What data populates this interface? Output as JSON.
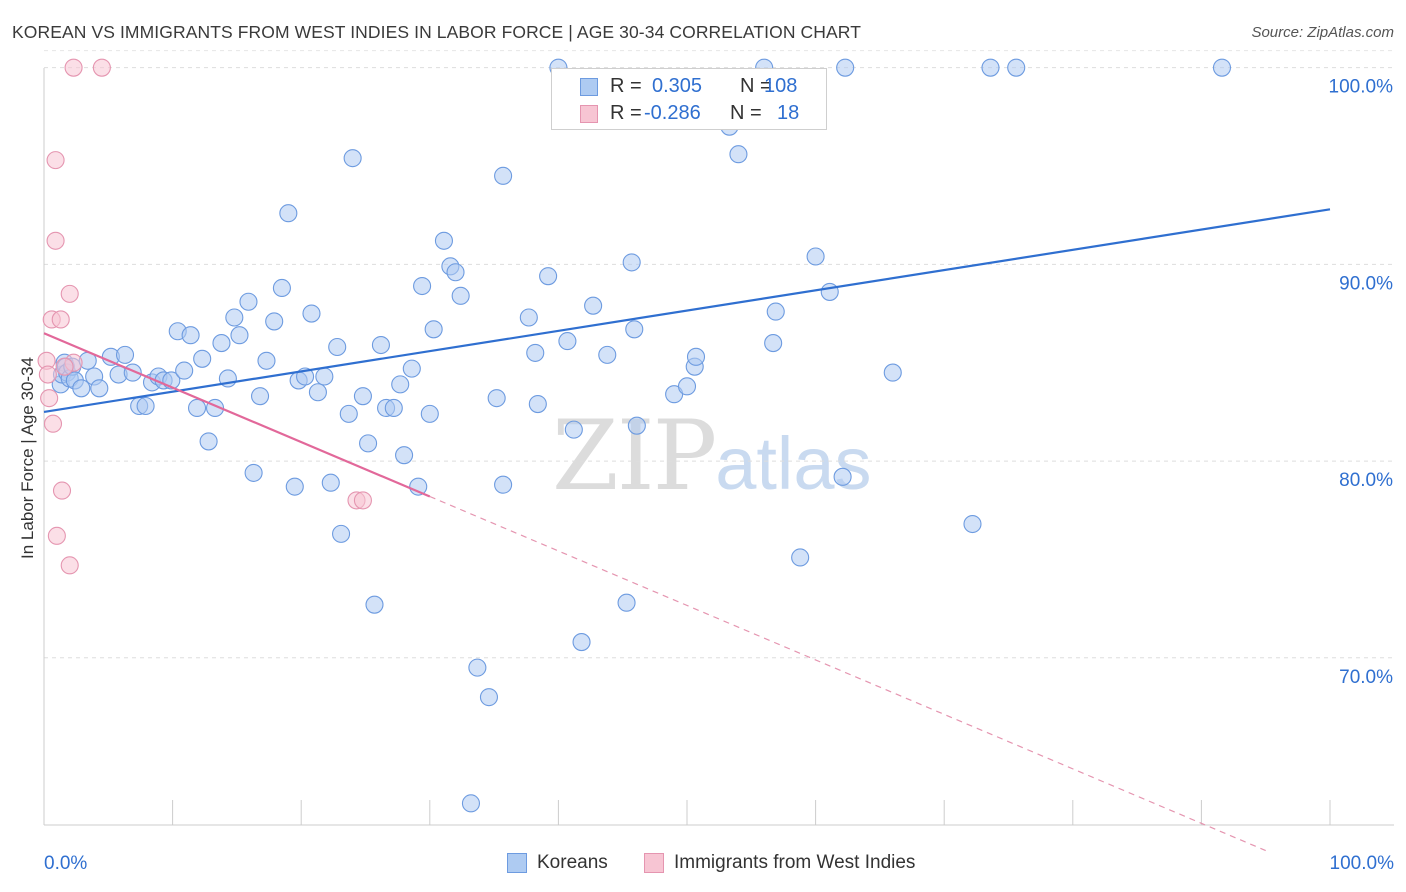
{
  "title": "KOREAN VS IMMIGRANTS FROM WEST INDIES IN LABOR FORCE | AGE 30-34 CORRELATION CHART",
  "source": "Source: ZipAtlas.com",
  "watermark": {
    "zip": "ZIP",
    "atlas": "atlas"
  },
  "legend": {
    "rows": [
      {
        "r_label": "R =",
        "r_value": "0.305",
        "n_label": "N =",
        "n_value": "108",
        "fill": "#aecbf2",
        "stroke": "#6d9be0"
      },
      {
        "r_label": "R =",
        "r_value": "-0.286",
        "n_label": "N =",
        "n_value": "18",
        "fill": "#f7c5d3",
        "stroke": "#e595b0"
      }
    ]
  },
  "chart_data": {
    "type": "scatter",
    "title": "KOREAN VS IMMIGRANTS FROM WEST INDIES IN LABOR FORCE | AGE 30-34 CORRELATION CHART",
    "xlabel": "",
    "ylabel": "In Labor Force | Age 30-34",
    "xlim": [
      0,
      100
    ],
    "ylim": [
      61.5,
      101
    ],
    "x_tick_labels": [
      "0.0%",
      "100.0%"
    ],
    "y_ticks": [
      70,
      80,
      90,
      100
    ],
    "y_tick_labels": [
      "70.0%",
      "80.0%",
      "90.0%",
      "100.0%"
    ],
    "grid": true,
    "legend_position": "bottom",
    "series": [
      {
        "name": "Koreans",
        "color": "#6d9be0",
        "fill": "#aecbf2",
        "trend": {
          "x": [
            0,
            100
          ],
          "y": [
            82.5,
            92.8
          ],
          "style": "solid"
        },
        "points": [
          [
            1.3,
            83.9
          ],
          [
            1.4,
            84.4
          ],
          [
            1.6,
            85.0
          ],
          [
            1.7,
            84.8
          ],
          [
            1.8,
            84.5
          ],
          [
            2.0,
            84.2
          ],
          [
            2.2,
            84.8
          ],
          [
            2.4,
            84.1
          ],
          [
            2.9,
            83.7
          ],
          [
            3.4,
            85.1
          ],
          [
            3.9,
            84.3
          ],
          [
            4.3,
            83.7
          ],
          [
            5.2,
            85.3
          ],
          [
            5.8,
            84.4
          ],
          [
            6.3,
            85.4
          ],
          [
            6.9,
            84.5
          ],
          [
            7.4,
            82.8
          ],
          [
            7.9,
            82.8
          ],
          [
            8.4,
            84.0
          ],
          [
            8.9,
            84.3
          ],
          [
            9.3,
            84.1
          ],
          [
            9.9,
            84.1
          ],
          [
            10.4,
            86.6
          ],
          [
            10.9,
            84.6
          ],
          [
            11.4,
            86.4
          ],
          [
            11.9,
            82.7
          ],
          [
            12.3,
            85.2
          ],
          [
            12.8,
            81.0
          ],
          [
            13.3,
            82.7
          ],
          [
            13.8,
            86.0
          ],
          [
            14.3,
            84.2
          ],
          [
            14.8,
            87.3
          ],
          [
            15.2,
            86.4
          ],
          [
            15.9,
            88.1
          ],
          [
            16.3,
            79.4
          ],
          [
            16.8,
            83.3
          ],
          [
            17.3,
            85.1
          ],
          [
            17.9,
            87.1
          ],
          [
            18.5,
            88.8
          ],
          [
            19.0,
            92.6
          ],
          [
            19.5,
            78.7
          ],
          [
            19.8,
            84.1
          ],
          [
            20.3,
            84.3
          ],
          [
            20.8,
            87.5
          ],
          [
            21.3,
            83.5
          ],
          [
            21.8,
            84.3
          ],
          [
            22.3,
            78.9
          ],
          [
            22.8,
            85.8
          ],
          [
            23.1,
            76.3
          ],
          [
            23.7,
            82.4
          ],
          [
            24.0,
            95.4
          ],
          [
            24.8,
            83.3
          ],
          [
            25.2,
            80.9
          ],
          [
            25.7,
            72.7
          ],
          [
            26.2,
            85.9
          ],
          [
            26.6,
            82.7
          ],
          [
            27.2,
            82.7
          ],
          [
            27.7,
            83.9
          ],
          [
            28.0,
            80.3
          ],
          [
            28.6,
            84.7
          ],
          [
            29.1,
            78.7
          ],
          [
            29.4,
            88.9
          ],
          [
            30.0,
            82.4
          ],
          [
            30.3,
            86.7
          ],
          [
            31.1,
            91.2
          ],
          [
            31.6,
            89.9
          ],
          [
            32.0,
            89.6
          ],
          [
            32.4,
            88.4
          ],
          [
            33.2,
            62.6
          ],
          [
            33.7,
            69.5
          ],
          [
            34.6,
            68.0
          ],
          [
            35.2,
            83.2
          ],
          [
            35.7,
            78.8
          ],
          [
            35.7,
            94.5
          ],
          [
            37.7,
            87.3
          ],
          [
            38.2,
            85.5
          ],
          [
            38.4,
            82.9
          ],
          [
            39.2,
            89.4
          ],
          [
            40.0,
            100.0
          ],
          [
            40.7,
            86.1
          ],
          [
            41.2,
            81.6
          ],
          [
            41.8,
            70.8
          ],
          [
            42.7,
            87.9
          ],
          [
            43.8,
            85.4
          ],
          [
            45.3,
            72.8
          ],
          [
            45.7,
            90.1
          ],
          [
            45.9,
            86.7
          ],
          [
            46.1,
            81.8
          ],
          [
            49.0,
            83.4
          ],
          [
            50.0,
            83.8
          ],
          [
            50.6,
            84.8
          ],
          [
            50.7,
            85.3
          ],
          [
            52.0,
            98.0
          ],
          [
            53.3,
            97.0
          ],
          [
            54.0,
            95.6
          ],
          [
            56.0,
            100.0
          ],
          [
            56.7,
            86.0
          ],
          [
            56.9,
            87.6
          ],
          [
            58.8,
            75.1
          ],
          [
            60.0,
            90.4
          ],
          [
            61.1,
            88.6
          ],
          [
            62.1,
            79.2
          ],
          [
            62.3,
            100.0
          ],
          [
            66.0,
            84.5
          ],
          [
            72.2,
            76.8
          ],
          [
            73.6,
            100.0
          ],
          [
            75.6,
            100.0
          ],
          [
            91.6,
            100.0
          ]
        ]
      },
      {
        "name": "Immigrants from West Indies",
        "color": "#e595b0",
        "fill": "#f7c5d3",
        "trend": {
          "x": [
            0,
            30
          ],
          "y": [
            86.5,
            78.2
          ],
          "style": "solid",
          "extended_to": [
            95,
            60.2
          ],
          "extended_style": "dashed"
        },
        "points": [
          [
            0.2,
            85.1
          ],
          [
            0.3,
            84.4
          ],
          [
            0.4,
            83.2
          ],
          [
            0.6,
            87.2
          ],
          [
            0.7,
            81.9
          ],
          [
            0.9,
            95.3
          ],
          [
            0.9,
            91.2
          ],
          [
            1.3,
            87.2
          ],
          [
            1.4,
            78.5
          ],
          [
            1.0,
            76.2
          ],
          [
            2.0,
            88.5
          ],
          [
            2.0,
            74.7
          ],
          [
            2.3,
            85.0
          ],
          [
            2.3,
            100.0
          ],
          [
            4.5,
            100.0
          ],
          [
            24.3,
            78.0
          ],
          [
            24.8,
            78.0
          ],
          [
            1.6,
            84.8
          ]
        ]
      }
    ]
  }
}
